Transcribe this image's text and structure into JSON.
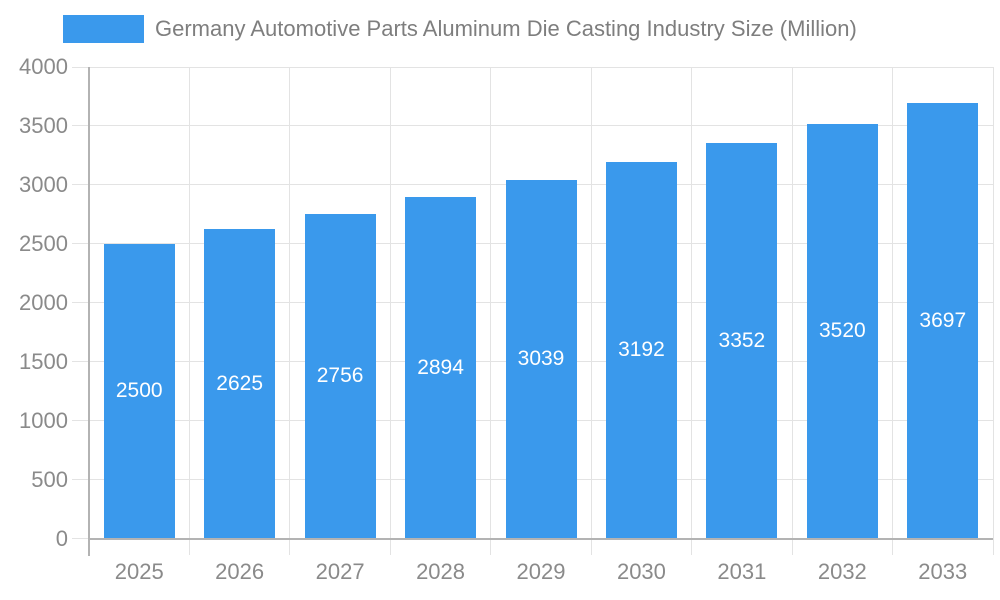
{
  "chart_data": {
    "type": "bar",
    "legend_label": "Germany Automotive Parts Aluminum Die Casting Industry Size (Million)",
    "legend_position": "top",
    "categories": [
      "2025",
      "2026",
      "2027",
      "2028",
      "2029",
      "2030",
      "2031",
      "2032",
      "2033"
    ],
    "values": [
      2500,
      2625,
      2756,
      2894,
      3039,
      3192,
      3352,
      3520,
      3697
    ],
    "value_labels": [
      "2500",
      "2625",
      "2756",
      "2894",
      "3039",
      "3192",
      "3352",
      "3520",
      "3697"
    ],
    "xlabel": "",
    "ylabel": "",
    "ylim": [
      0,
      4000
    ],
    "ytick_step": 500,
    "ytick_labels": [
      "0",
      "500",
      "1000",
      "1500",
      "2000",
      "2500",
      "3000",
      "3500",
      "4000"
    ],
    "grid": true,
    "colors": {
      "bar": "#3A99EC",
      "grid": "#E3E3E3",
      "axis": "#B3B3B3",
      "tick_text": "#8A8A8A",
      "legend_text": "#7E7E7E",
      "value_text": "#FFFFFF",
      "background": "#FFFFFF"
    }
  }
}
